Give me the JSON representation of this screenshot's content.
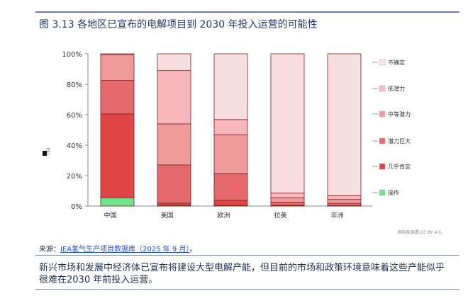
{
  "title": "图 3.13 各地区已宣布的电解项目到 2030 年投入运营的可能性",
  "source_label": "来源：",
  "source_link": "IEA氢气生产项目数据库（2025 年 9 月）",
  "source_suffix": "。",
  "credit": "国际能源署,CC BY 4.0。",
  "note": "新兴市场和发展中经济体已宣布将建设大型电解产能，但目前的市场和政策环境意味着这些产能似乎很难在2030 年前投入运营。",
  "ylabel": "(%)",
  "colors": {
    "不确定": "#fadfe1",
    "低潜力": "#f7b8bd",
    "中等潜力": "#ef9b9b",
    "潜力巨大": "#e6696b",
    "几乎肯定": "#e04545",
    "操作": "#6fe38d",
    "bar_stroke": "#7a1f1f",
    "title": "#20376f"
  },
  "chart_data": {
    "type": "bar",
    "stacked": true,
    "categories": [
      "中国",
      "美国",
      "欧洲",
      "拉美",
      "非洲"
    ],
    "ylim": [
      0,
      100
    ],
    "yticks": [
      "0%",
      "20%",
      "40%",
      "60%",
      "80%",
      "100%"
    ],
    "series": [
      {
        "name": "操作",
        "values": [
          5.5,
          0.5,
          0.3,
          0,
          0
        ]
      },
      {
        "name": "几乎肯定",
        "values": [
          55,
          1.5,
          3.5,
          0.5,
          0.3
        ]
      },
      {
        "name": "潜力巨大",
        "values": [
          22,
          25,
          17.5,
          2,
          1.5
        ]
      },
      {
        "name": "中等潜力",
        "values": [
          17,
          27,
          25.5,
          3,
          2.5
        ]
      },
      {
        "name": "低潜力",
        "values": [
          0.5,
          35,
          10,
          3,
          2.5
        ]
      },
      {
        "name": "不确定",
        "values": [
          0,
          11,
          43.2,
          91.5,
          93.2
        ]
      }
    ],
    "legend_order": [
      "不确定",
      "低潜力",
      "中等潜力",
      "潜力巨大",
      "几乎肯定",
      "操作"
    ],
    "legend_position": "right",
    "grid": false
  }
}
